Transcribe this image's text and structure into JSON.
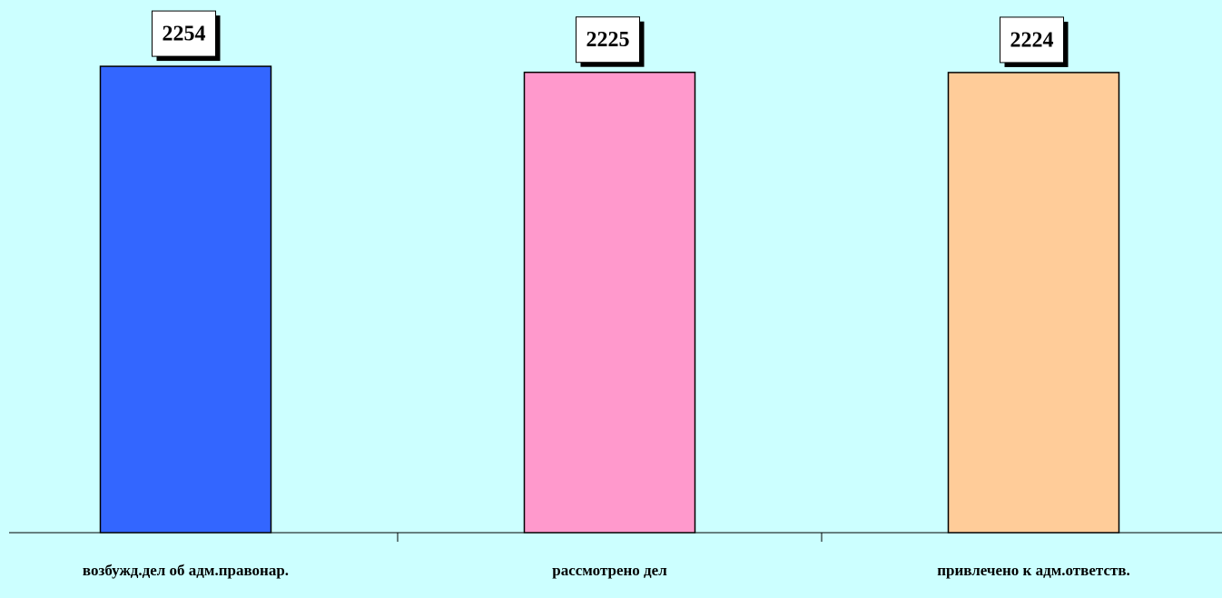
{
  "chart_data": {
    "type": "bar",
    "categories": [
      "возбужд.дел об адм.правонар.",
      "рассмотрено дел",
      "привлечено к адм.ответств."
    ],
    "values": [
      2254,
      2225,
      2224
    ],
    "colors": [
      "#3366ff",
      "#ff99cc",
      "#ffcc99"
    ],
    "ylim": [
      0,
      2500
    ]
  }
}
